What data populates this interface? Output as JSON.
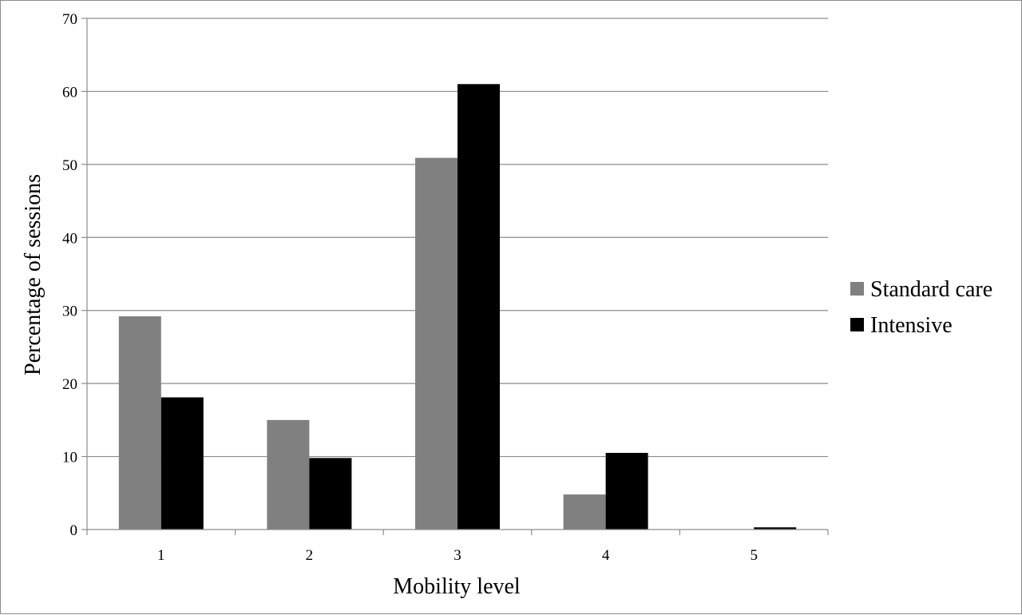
{
  "chart_data": {
    "type": "bar",
    "categories": [
      "1",
      "2",
      "3",
      "4",
      "5"
    ],
    "series": [
      {
        "name": "Standard care",
        "color": "#808080",
        "values": [
          29.2,
          15.0,
          50.9,
          4.8,
          0.0
        ]
      },
      {
        "name": "Intensive",
        "color": "#000000",
        "values": [
          18.1,
          9.8,
          61.0,
          10.5,
          0.3
        ]
      }
    ],
    "title": "",
    "xlabel": "Mobility level",
    "ylabel": "Percentage of sessions",
    "ylim": [
      0,
      70
    ],
    "yticks": [
      0,
      10,
      20,
      30,
      40,
      50,
      60,
      70
    ],
    "grid": true,
    "legend_position": "right"
  }
}
